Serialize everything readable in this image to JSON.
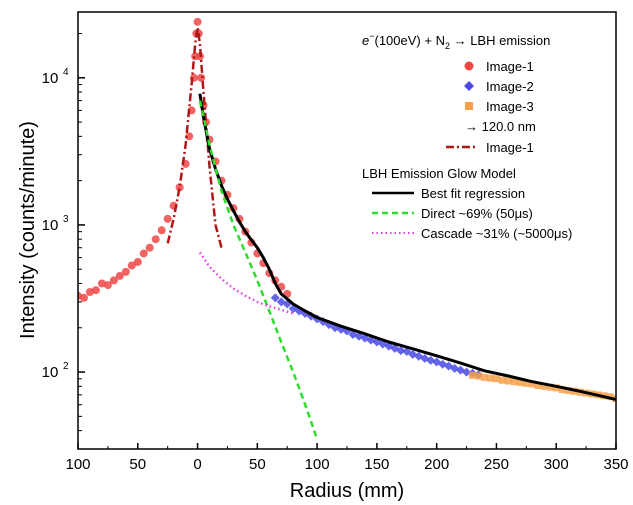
{
  "chart_data": {
    "type": "scatter",
    "title": "",
    "xlabel": "Radius (mm)",
    "ylabel": "Intensity (counts/minute)",
    "x_range": [
      -100,
      350
    ],
    "y_range": [
      30,
      28000
    ],
    "y_scale": "log",
    "x_ticks": [
      -100,
      -50,
      0,
      50,
      100,
      150,
      200,
      250,
      300,
      350
    ],
    "x_tick_labels": [
      "100",
      "50",
      "0",
      "50",
      "100",
      "150",
      "200",
      "250",
      "300",
      "350"
    ],
    "y_ticks": [
      100,
      1000,
      10000
    ],
    "y_tick_labels": [
      "10",
      "10",
      "10"
    ],
    "y_tick_exponents": [
      "2",
      "3",
      "4"
    ],
    "grid": false,
    "legend_position": "top-right",
    "legend": {
      "reaction": {
        "prefix": "e",
        "sup": "−",
        "mid": "(100eV) + N",
        "sub": "2",
        "suffix": " → LBH emission"
      },
      "wavelength_label": "→ 120.0 nm",
      "model_title": "LBH Emission Glow Model"
    },
    "series": [
      {
        "name": "Image-1",
        "kind": "scatter",
        "marker": "circle",
        "color": "#f04646",
        "points": [
          [
            -100,
            330
          ],
          [
            -95,
            320
          ],
          [
            -90,
            350
          ],
          [
            -85,
            360
          ],
          [
            -80,
            400
          ],
          [
            -75,
            390
          ],
          [
            -70,
            420
          ],
          [
            -65,
            450
          ],
          [
            -60,
            480
          ],
          [
            -55,
            530
          ],
          [
            -50,
            560
          ],
          [
            -45,
            640
          ],
          [
            -40,
            700
          ],
          [
            -35,
            800
          ],
          [
            -30,
            920
          ],
          [
            -25,
            1100
          ],
          [
            -20,
            1350
          ],
          [
            -15,
            1800
          ],
          [
            -10,
            2600
          ],
          [
            -7,
            4000
          ],
          [
            -5,
            6000
          ],
          [
            -3,
            10000
          ],
          [
            -2,
            14000
          ],
          [
            -1,
            20000
          ],
          [
            0,
            24000
          ],
          [
            1,
            20000
          ],
          [
            2,
            14000
          ],
          [
            3,
            10000
          ],
          [
            5,
            6500
          ],
          [
            7,
            5000
          ],
          [
            10,
            3800
          ],
          [
            15,
            2700
          ],
          [
            20,
            2000
          ],
          [
            25,
            1600
          ],
          [
            30,
            1300
          ],
          [
            35,
            1100
          ],
          [
            40,
            900
          ],
          [
            45,
            760
          ],
          [
            50,
            640
          ],
          [
            55,
            550
          ],
          [
            60,
            470
          ],
          [
            65,
            420
          ],
          [
            70,
            380
          ],
          [
            75,
            340
          ]
        ]
      },
      {
        "name": "Image-2",
        "kind": "scatter",
        "marker": "diamond",
        "color": "#4a4ae6",
        "points": [
          [
            65,
            320
          ],
          [
            70,
            300
          ],
          [
            75,
            290
          ],
          [
            80,
            270
          ],
          [
            85,
            260
          ],
          [
            90,
            250
          ],
          [
            95,
            240
          ],
          [
            100,
            230
          ],
          [
            105,
            220
          ],
          [
            110,
            210
          ],
          [
            115,
            200
          ],
          [
            120,
            195
          ],
          [
            125,
            190
          ],
          [
            130,
            180
          ],
          [
            135,
            175
          ],
          [
            140,
            170
          ],
          [
            145,
            165
          ],
          [
            150,
            160
          ],
          [
            155,
            155
          ],
          [
            160,
            150
          ],
          [
            165,
            145
          ],
          [
            170,
            140
          ],
          [
            175,
            138
          ],
          [
            180,
            132
          ],
          [
            185,
            128
          ],
          [
            190,
            124
          ],
          [
            195,
            120
          ],
          [
            200,
            117
          ],
          [
            205,
            113
          ],
          [
            210,
            110
          ],
          [
            215,
            106
          ],
          [
            220,
            103
          ],
          [
            225,
            100
          ],
          [
            230,
            98
          ],
          [
            235,
            96
          ]
        ]
      },
      {
        "name": "Image-3",
        "kind": "scatter",
        "marker": "square",
        "color": "#f5a14a",
        "points": [
          [
            230,
            95
          ],
          [
            235,
            94
          ],
          [
            240,
            92
          ],
          [
            245,
            91
          ],
          [
            250,
            90
          ],
          [
            255,
            88
          ],
          [
            260,
            87
          ],
          [
            265,
            86
          ],
          [
            270,
            85
          ],
          [
            275,
            84
          ],
          [
            280,
            83
          ],
          [
            285,
            81
          ],
          [
            290,
            80
          ],
          [
            295,
            79
          ],
          [
            300,
            78
          ],
          [
            305,
            76
          ],
          [
            310,
            75
          ],
          [
            315,
            74
          ],
          [
            320,
            73
          ],
          [
            325,
            72
          ],
          [
            330,
            71
          ],
          [
            335,
            70
          ],
          [
            340,
            69
          ],
          [
            345,
            68
          ],
          [
            350,
            66
          ]
        ]
      },
      {
        "name": "Image-1",
        "kind": "line",
        "style": "dashdot",
        "color": "#b01818",
        "points": [
          [
            -25,
            750
          ],
          [
            -20,
            1100
          ],
          [
            -15,
            1800
          ],
          [
            -10,
            3500
          ],
          [
            -5,
            9000
          ],
          [
            -2,
            17000
          ],
          [
            0,
            22000
          ],
          [
            2,
            17000
          ],
          [
            5,
            8000
          ],
          [
            10,
            2500
          ],
          [
            15,
            1000
          ],
          [
            20,
            700
          ]
        ]
      },
      {
        "name": "Best fit regression",
        "kind": "line",
        "style": "solid",
        "color": "#000000",
        "points": [
          [
            2,
            7800
          ],
          [
            5,
            5400
          ],
          [
            10,
            3300
          ],
          [
            15,
            2400
          ],
          [
            20,
            1850
          ],
          [
            25,
            1500
          ],
          [
            30,
            1250
          ],
          [
            35,
            1050
          ],
          [
            40,
            900
          ],
          [
            45,
            790
          ],
          [
            50,
            700
          ],
          [
            55,
            600
          ],
          [
            60,
            500
          ],
          [
            65,
            400
          ],
          [
            70,
            340
          ],
          [
            80,
            290
          ],
          [
            90,
            260
          ],
          [
            100,
            235
          ],
          [
            120,
            205
          ],
          [
            140,
            182
          ],
          [
            160,
            160
          ],
          [
            180,
            144
          ],
          [
            200,
            129
          ],
          [
            220,
            115
          ],
          [
            240,
            102
          ],
          [
            260,
            94
          ],
          [
            280,
            86
          ],
          [
            300,
            80
          ],
          [
            320,
            74
          ],
          [
            340,
            68
          ],
          [
            350,
            65
          ]
        ]
      },
      {
        "name": "Direct ~69% (50μs)",
        "kind": "line",
        "style": "dashed",
        "color": "#2ddc2d",
        "points": [
          [
            2,
            7000
          ],
          [
            5,
            5500
          ],
          [
            10,
            3500
          ],
          [
            20,
            1700
          ],
          [
            30,
            1000
          ],
          [
            40,
            650
          ],
          [
            50,
            420
          ],
          [
            60,
            260
          ],
          [
            70,
            160
          ],
          [
            80,
            100
          ],
          [
            90,
            60
          ],
          [
            100,
            35
          ]
        ]
      },
      {
        "name": "Cascade ~31% (~5000μs)",
        "kind": "line",
        "style": "dotted",
        "color": "#e040e0",
        "points": [
          [
            2,
            650
          ],
          [
            10,
            520
          ],
          [
            20,
            430
          ],
          [
            30,
            370
          ],
          [
            40,
            330
          ],
          [
            50,
            300
          ],
          [
            60,
            280
          ],
          [
            70,
            265
          ],
          [
            80,
            250
          ]
        ]
      }
    ]
  }
}
